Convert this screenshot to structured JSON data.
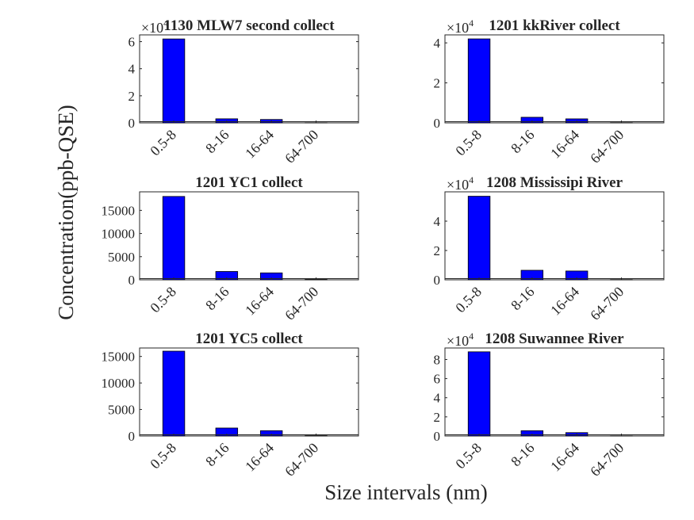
{
  "figure": {
    "ylabel": "Concentration(ppb-QSE)",
    "xlabel": "Size intervals (nm)"
  },
  "chart_data": [
    {
      "type": "bar",
      "title": "1130 MLW7 second collect",
      "categories": [
        "0.5-8",
        "8-16",
        "16-64",
        "64-700"
      ],
      "values": [
        62000,
        3000,
        2500,
        100
      ],
      "ylim": [
        0,
        65000
      ],
      "yticks": [
        0,
        2,
        4,
        6
      ],
      "multiplier": "×10",
      "exponent": "4",
      "bar_color": "#0000ff"
    },
    {
      "type": "bar",
      "title": "1201 kkRiver collect",
      "categories": [
        "0.5-8",
        "8-16",
        "16-64",
        "64-700"
      ],
      "values": [
        42000,
        2800,
        2000,
        100
      ],
      "ylim": [
        0,
        44000
      ],
      "yticks": [
        0,
        2,
        4
      ],
      "multiplier": "×10",
      "exponent": "4",
      "bar_color": "#0000ff"
    },
    {
      "type": "bar",
      "title": "1201 YC1 collect",
      "categories": [
        "0.5-8",
        "8-16",
        "16-64",
        "64-700"
      ],
      "values": [
        18000,
        1800,
        1500,
        80
      ],
      "ylim": [
        0,
        19000
      ],
      "yticks": [
        0,
        5000,
        10000,
        15000
      ],
      "bar_color": "#0000ff"
    },
    {
      "type": "bar",
      "title": "1208 Mississipi River",
      "categories": [
        "0.5-8",
        "8-16",
        "16-64",
        "64-700"
      ],
      "values": [
        57000,
        6500,
        6000,
        150
      ],
      "ylim": [
        0,
        60000
      ],
      "yticks": [
        0,
        2,
        4
      ],
      "multiplier": "×10",
      "exponent": "4",
      "bar_color": "#0000ff"
    },
    {
      "type": "bar",
      "title": "1201 YC5 collect",
      "categories": [
        "0.5-8",
        "8-16",
        "16-64",
        "64-700"
      ],
      "values": [
        16000,
        1500,
        1000,
        60
      ],
      "ylim": [
        0,
        16600
      ],
      "yticks": [
        0,
        5000,
        10000,
        15000
      ],
      "bar_color": "#0000ff"
    },
    {
      "type": "bar",
      "title": "1208 Suwannee River",
      "categories": [
        "0.5-8",
        "8-16",
        "16-64",
        "64-700"
      ],
      "values": [
        88000,
        5500,
        3500,
        150
      ],
      "ylim": [
        0,
        92000
      ],
      "yticks": [
        0,
        2,
        4,
        6,
        8
      ],
      "multiplier": "×10",
      "exponent": "4",
      "bar_color": "#0000ff"
    }
  ]
}
